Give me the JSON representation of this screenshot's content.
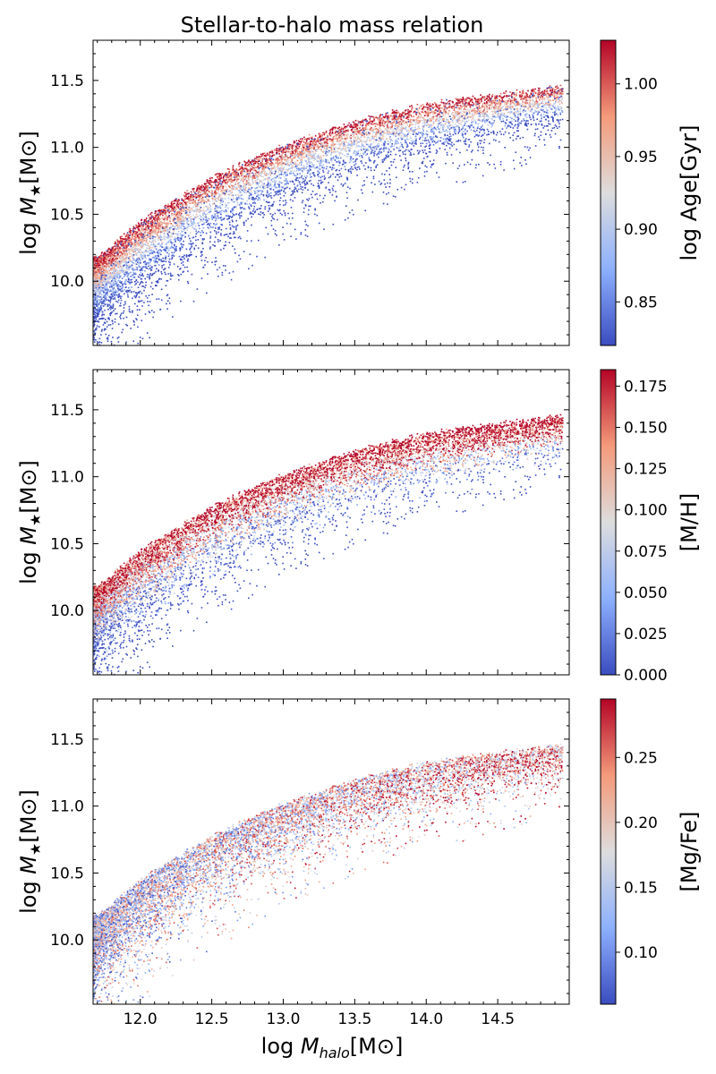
{
  "chart_data": {
    "type": "scatter",
    "title": "Stellar-to-halo mass relation",
    "xlabel": "log M_halo[M⊙]",
    "ylabel": "log M★[M⊙]",
    "xlim": [
      11.67,
      15.0
    ],
    "ylim": [
      9.52,
      11.8
    ],
    "x_ticks": [
      "12.0",
      "12.5",
      "13.0",
      "13.5",
      "14.0",
      "14.5"
    ],
    "y_ticks": [
      "10.0",
      "10.5",
      "11.0",
      "11.5"
    ],
    "colormap": "coolwarm",
    "colors": {
      "low": "#3b4cc0",
      "mid": "#dddddd",
      "high": "#b40426"
    },
    "relation_sample": {
      "x": [
        11.7,
        12.0,
        12.5,
        13.0,
        13.5,
        14.0,
        14.5,
        14.9
      ],
      "y_upper_envelope": [
        10.18,
        10.45,
        10.78,
        11.02,
        11.2,
        11.33,
        11.4,
        11.45
      ],
      "scatter_lower_dex": [
        0.55,
        0.55,
        0.5,
        0.45,
        0.42,
        0.4,
        0.35,
        0.3
      ]
    },
    "panels": [
      {
        "colorbar_label": "log Age[Gyr]",
        "cbar_range": [
          0.82,
          1.03
        ],
        "cbar_ticks": [
          0.85,
          0.9,
          0.95,
          1.0
        ],
        "cbar_tick_labels": [
          "0.85",
          "0.90",
          "0.95",
          "1.00"
        ],
        "trend": "older (red) along upper envelope, younger (blue) at lower stellar mass for given halo mass"
      },
      {
        "colorbar_label": "[M/H]",
        "cbar_range": [
          0.0,
          0.185
        ],
        "cbar_ticks": [
          0.0,
          0.025,
          0.05,
          0.075,
          0.1,
          0.125,
          0.15,
          0.175
        ],
        "cbar_tick_labels": [
          "0.000",
          "0.025",
          "0.050",
          "0.075",
          "0.100",
          "0.125",
          "0.150",
          "0.175"
        ],
        "trend": "metal-rich (red) along upper envelope and at high mass, metal-poor (blue) below"
      },
      {
        "colorbar_label": "[Mg/Fe]",
        "cbar_range": [
          0.06,
          0.295
        ],
        "cbar_ticks": [
          0.1,
          0.15,
          0.2,
          0.25
        ],
        "cbar_tick_labels": [
          "0.10",
          "0.15",
          "0.20",
          "0.25"
        ],
        "trend": "mixed, slightly higher [Mg/Fe] (red) at high halo mass"
      }
    ]
  }
}
